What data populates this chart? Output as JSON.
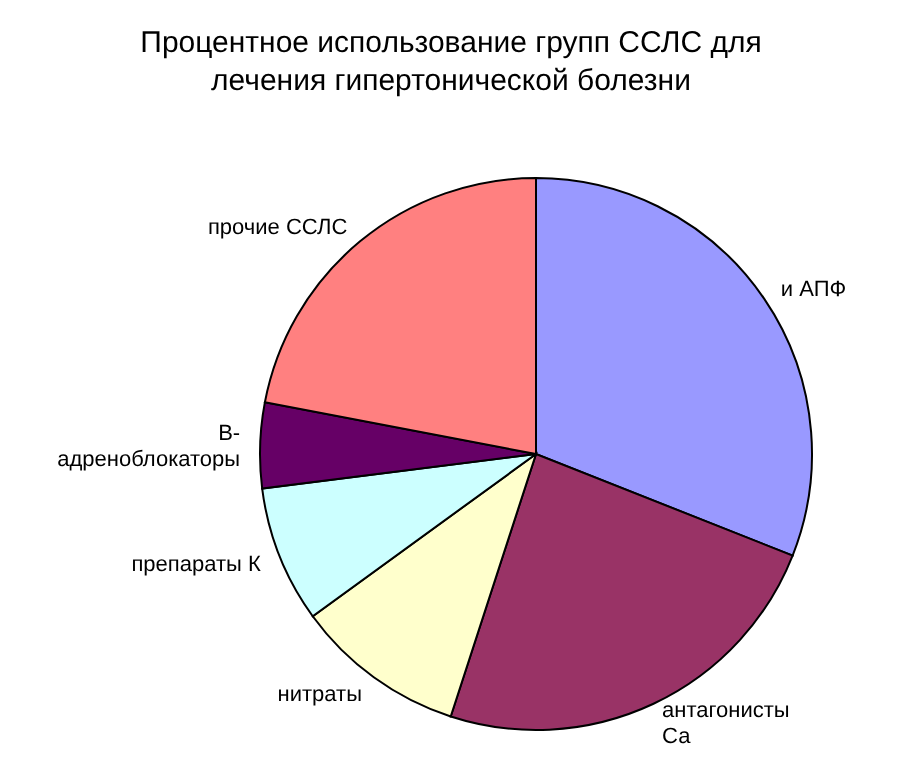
{
  "chart_data": {
    "type": "pie",
    "title": "Процентное использование групп ССЛС для лечения гипертонической болезни",
    "categories": [
      "и АПФ",
      "антагонисты Са",
      "нитраты",
      "препараты К",
      "В-адреноблокаторы",
      "прочие ССЛС"
    ],
    "values": [
      31,
      24,
      10,
      8,
      5,
      22
    ],
    "colors": [
      "#9999ff",
      "#993366",
      "#ffffcc",
      "#ccffff",
      "#660066",
      "#ff8080"
    ]
  }
}
